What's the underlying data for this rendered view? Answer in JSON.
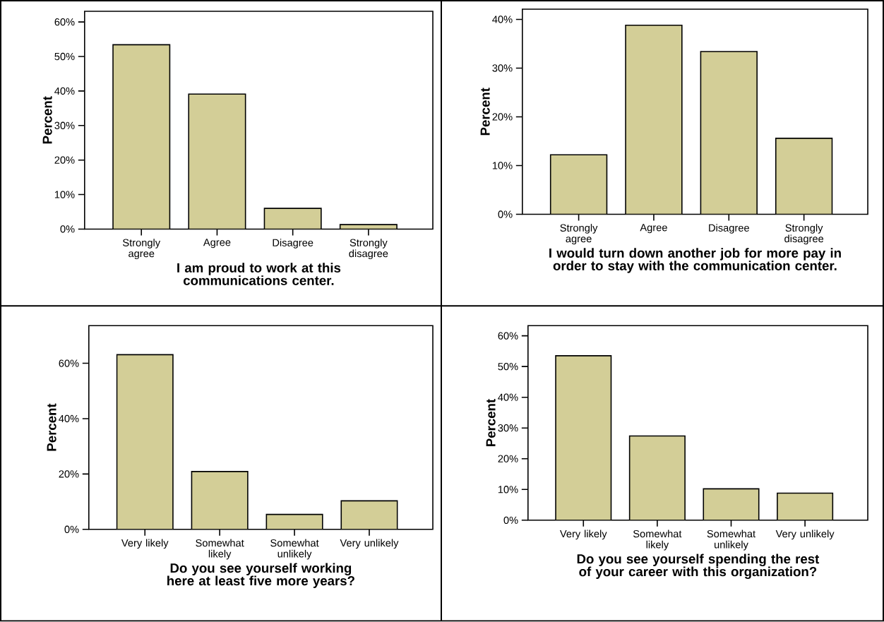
{
  "chart_data": [
    {
      "type": "bar",
      "categories": [
        "Strongly agree",
        "Agree",
        "Disagree",
        "Strongly disagree"
      ],
      "values": [
        53.4,
        39.1,
        6.0,
        1.3
      ],
      "color": "#d3ce97",
      "ylim": [
        0,
        63.1
      ],
      "yticks": [
        {
          "value": 0,
          "label": "0%"
        },
        {
          "value": 10,
          "label": "10%"
        },
        {
          "value": 20,
          "label": "20%"
        },
        {
          "value": 30,
          "label": "30%"
        },
        {
          "value": 40,
          "label": "40%"
        },
        {
          "value": 50,
          "label": "50%"
        },
        {
          "value": 60,
          "label": "60%"
        }
      ],
      "xlabel": "I am proud to work at this communications center.",
      "ylabel": "Percent"
    },
    {
      "type": "bar",
      "categories": [
        "Strongly agree",
        "Agree",
        "Disagree",
        "Strongly disagree"
      ],
      "values": [
        12.2,
        38.8,
        33.4,
        15.6
      ],
      "color": "#d3ce97",
      "ylim": [
        0,
        42.1
      ],
      "yticks": [
        {
          "value": 0,
          "label": "0%"
        },
        {
          "value": 10,
          "label": "10%"
        },
        {
          "value": 20,
          "label": "20%"
        },
        {
          "value": 30,
          "label": "30%"
        },
        {
          "value": 40,
          "label": "40%"
        }
      ],
      "xlabel": "I would turn down another job for more pay in order to stay with the communication center.",
      "ylabel": "Percent"
    },
    {
      "type": "bar",
      "categories": [
        "Very likely",
        "Somewhat likely",
        "Somewhat unlikely",
        "Very unlikely"
      ],
      "values": [
        63.1,
        20.9,
        5.4,
        10.3
      ],
      "color": "#d3ce97",
      "ylim": [
        0,
        73.6
      ],
      "yticks": [
        {
          "value": 0,
          "label": "0%"
        },
        {
          "value": 20,
          "label": "20%"
        },
        {
          "value": 40,
          "label": "40%"
        },
        {
          "value": 60,
          "label": "60%"
        }
      ],
      "xlabel": "Do you see yourself working here at least five more years?",
      "ylabel": "Percent"
    },
    {
      "type": "bar",
      "categories": [
        "Very likely",
        "Somewhat likely",
        "Somewhat unlikely",
        "Very unlikely"
      ],
      "values": [
        53.5,
        27.4,
        10.2,
        8.8
      ],
      "color": "#d3ce97",
      "ylim": [
        0,
        63.3
      ],
      "yticks": [
        {
          "value": 0,
          "label": "0%"
        },
        {
          "value": 10,
          "label": "10%"
        },
        {
          "value": 20,
          "label": "20%"
        },
        {
          "value": 30,
          "label": "30%"
        },
        {
          "value": 40,
          "label": "40%"
        },
        {
          "value": 50,
          "label": "50%"
        },
        {
          "value": 60,
          "label": "60%"
        }
      ],
      "xlabel": "Do you see yourself spending the rest of your career with this organization?",
      "ylabel": "Percent"
    }
  ]
}
